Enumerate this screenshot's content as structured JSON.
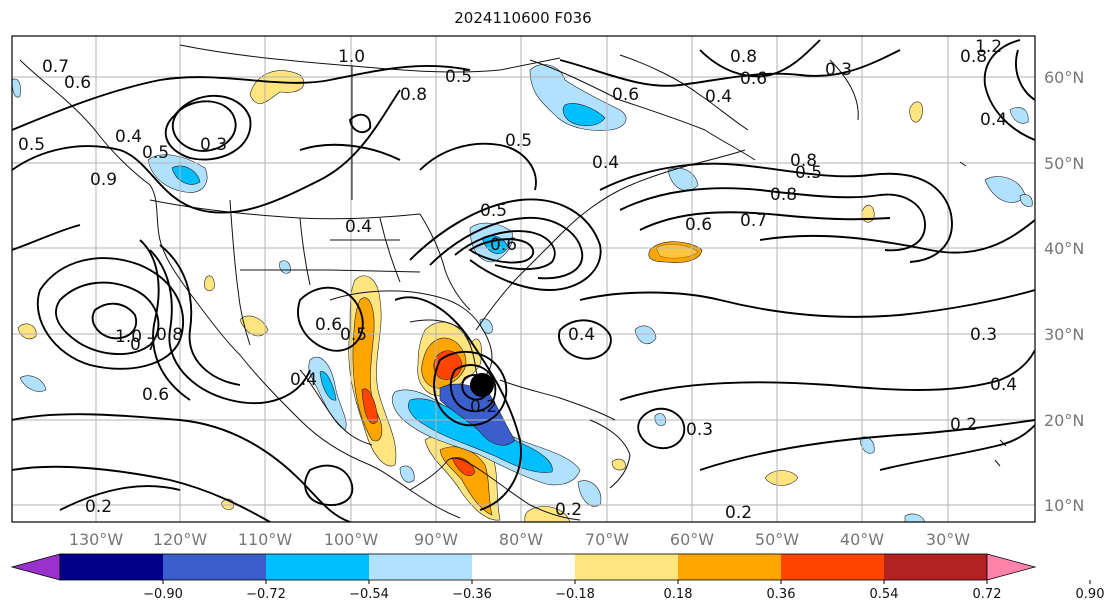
{
  "title": "2024110600 F036",
  "lon_labels": [
    "130°W",
    "120°W",
    "110°W",
    "100°W",
    "90°W",
    "80°W",
    "70°W",
    "60°W",
    "50°W",
    "40°W",
    "30°W"
  ],
  "lat_labels": [
    "60°N",
    "50°N",
    "40°N",
    "30°N",
    "20°N",
    "10°N"
  ],
  "colorbar": {
    "ticks": [
      "−0.90",
      "−0.72",
      "−0.54",
      "−0.36",
      "−0.18",
      "0.18",
      "0.36",
      "0.54",
      "0.72",
      "0.90"
    ],
    "colors": [
      "#9932cc",
      "#00008b",
      "#3a5fcd",
      "#00bfff",
      "#b0e2ff",
      "#ffffff",
      "#ffe57f",
      "#ffa500",
      "#ff4500",
      "#b22222",
      "#ff82ab"
    ]
  },
  "contour_labels": [
    "1.0",
    "0.8",
    "0.7",
    "0.6",
    "0.5",
    "0.4",
    "0.3",
    "0.2",
    "0.5",
    "0.6",
    "0.4",
    "0.8",
    "0.6",
    "0.7",
    "0.8",
    "0.5",
    "0.4",
    "0.3",
    "1.2",
    "0.8",
    "0.5",
    "0.4",
    "0.6",
    "0.4",
    "0.3",
    "0.2",
    "0.4",
    "0.3",
    "0.2",
    "0.5",
    "0.5",
    "0.6",
    "0.2",
    "0.8",
    "1.0",
    "0.6",
    "0.4",
    "0.9",
    "0.7",
    "0.6",
    "0.5",
    "0.4",
    "0.2",
    "0.8"
  ]
}
